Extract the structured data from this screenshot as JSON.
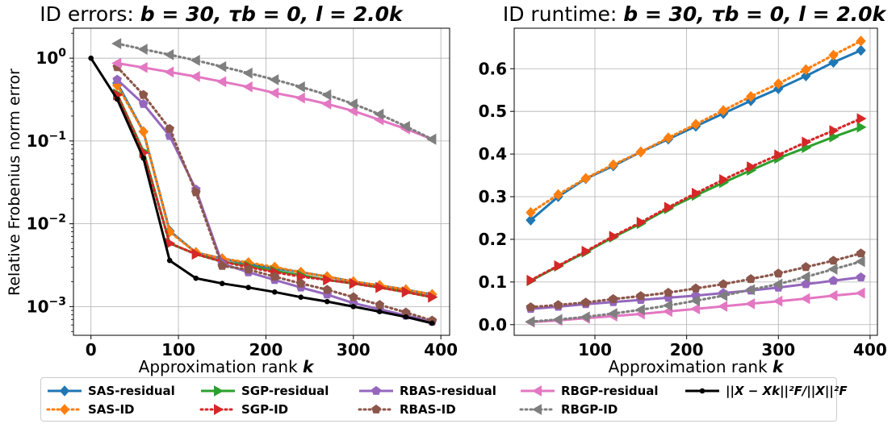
{
  "colors": {
    "blue": "#1f77b4",
    "orange": "#ff7f0e",
    "green": "#2ca02c",
    "red": "#d62728",
    "purple": "#9467bd",
    "brown": "#8c564b",
    "pink": "#e377c2",
    "gray": "#7f7f7f",
    "black": "#000000"
  },
  "chart_data": [
    {
      "type": "line",
      "title": {
        "prefix": "ID errors: ",
        "math": "b = 30, τb = 0, l = 2.0k"
      },
      "xlabel": {
        "text": "Approximation rank ",
        "math": "k"
      },
      "ylabel": "Relative Frobenius norm error",
      "yscale": "log",
      "xlim": [
        -20,
        410
      ],
      "ylim": [
        0.00045,
        2.3
      ],
      "xticks": [
        "0",
        "100",
        "200",
        "300",
        "400"
      ],
      "yticks": [
        {
          "base": "10",
          "exp": "0"
        },
        {
          "base": "10",
          "exp": "−1"
        },
        {
          "base": "10",
          "exp": "−2"
        },
        {
          "base": "10",
          "exp": "−3"
        }
      ],
      "grid": true,
      "series": [
        {
          "name": "SAS-residual",
          "color": "blue",
          "dash": "solid",
          "marker": "diamond",
          "x": [
            30,
            60,
            90,
            120,
            150,
            180,
            210,
            240,
            270,
            300,
            330,
            360,
            390
          ],
          "y": [
            0.5,
            0.13,
            0.0082,
            0.0045,
            0.0038,
            0.0033,
            0.0029,
            0.0026,
            0.0023,
            0.002,
            0.0018,
            0.0016,
            0.0014
          ]
        },
        {
          "name": "SAS-ID",
          "color": "orange",
          "dash": "dotted",
          "marker": "diamond",
          "x": [
            30,
            60,
            90,
            120,
            150,
            180,
            210,
            240,
            270,
            300,
            330,
            360,
            390
          ],
          "y": [
            0.47,
            0.13,
            0.008,
            0.0045,
            0.0038,
            0.0034,
            0.003,
            0.0026,
            0.0023,
            0.002,
            0.0018,
            0.0016,
            0.0014
          ]
        },
        {
          "name": "SGP-residual",
          "color": "green",
          "dash": "solid",
          "marker": "tri-right",
          "x": [
            30,
            60,
            90,
            120,
            150,
            180,
            210,
            240,
            270,
            300,
            330,
            360,
            390
          ],
          "y": [
            0.37,
            0.075,
            0.0058,
            0.0043,
            0.0035,
            0.0031,
            0.0027,
            0.0024,
            0.0021,
            0.0019,
            0.0017,
            0.0015,
            0.0013
          ]
        },
        {
          "name": "SGP-ID",
          "color": "red",
          "dash": "dotted",
          "marker": "tri-right",
          "x": [
            30,
            60,
            90,
            120,
            150,
            180,
            210,
            240,
            270,
            300,
            330,
            360,
            390
          ],
          "y": [
            0.36,
            0.072,
            0.0058,
            0.0043,
            0.0035,
            0.003,
            0.0026,
            0.0023,
            0.0021,
            0.0019,
            0.0017,
            0.0015,
            0.0013
          ]
        },
        {
          "name": "RBAS-residual",
          "color": "purple",
          "dash": "solid",
          "marker": "pentagon",
          "x": [
            30,
            60,
            90,
            120,
            150,
            180,
            210,
            240,
            270,
            300,
            330,
            360,
            390
          ],
          "y": [
            0.55,
            0.28,
            0.115,
            0.026,
            0.0033,
            0.0026,
            0.0021,
            0.0017,
            0.0014,
            0.0011,
            0.00093,
            0.00078,
            0.00066
          ]
        },
        {
          "name": "RBAS-ID",
          "color": "brown",
          "dash": "dotted",
          "marker": "pentagon",
          "x": [
            30,
            60,
            90,
            120,
            150,
            180,
            210,
            240,
            270,
            300,
            330,
            360,
            390
          ],
          "y": [
            0.78,
            0.36,
            0.14,
            0.024,
            0.0031,
            0.0028,
            0.0023,
            0.0019,
            0.0016,
            0.0013,
            0.00105,
            0.00085,
            0.00068
          ]
        },
        {
          "name": "RBGP-residual",
          "color": "pink",
          "dash": "solid",
          "marker": "tri-left",
          "x": [
            30,
            60,
            90,
            120,
            150,
            180,
            210,
            240,
            270,
            300,
            330,
            360,
            390
          ],
          "y": [
            0.87,
            0.77,
            0.68,
            0.6,
            0.52,
            0.45,
            0.38,
            0.33,
            0.28,
            0.23,
            0.18,
            0.14,
            0.105
          ]
        },
        {
          "name": "RBGP-ID",
          "color": "gray",
          "dash": "dotted",
          "marker": "tri-left",
          "x": [
            30,
            60,
            90,
            120,
            150,
            180,
            210,
            240,
            270,
            300,
            330,
            360,
            390
          ],
          "y": [
            1.5,
            1.28,
            1.1,
            0.94,
            0.79,
            0.66,
            0.55,
            0.45,
            0.36,
            0.28,
            0.21,
            0.15,
            0.105
          ]
        },
        {
          "name": "||X − Xk||²F/||X||²F",
          "color": "black",
          "dash": "solid",
          "marker": "dot",
          "x": [
            0,
            30,
            60,
            90,
            120,
            150,
            180,
            210,
            240,
            270,
            300,
            330,
            360,
            390
          ],
          "y": [
            1.0,
            0.32,
            0.062,
            0.0036,
            0.0022,
            0.0019,
            0.0017,
            0.0015,
            0.0013,
            0.00115,
            0.001,
            0.00087,
            0.00075,
            0.00063
          ]
        }
      ]
    },
    {
      "type": "line",
      "title": {
        "prefix": "ID runtime: ",
        "math": "b = 30, τb = 0, l = 2.0k"
      },
      "xlabel": {
        "text": "Approximation rank ",
        "math": "k"
      },
      "ylabel": "",
      "yscale": "linear",
      "xlim": [
        12,
        408
      ],
      "ylim": [
        -0.025,
        0.695
      ],
      "xticks": [
        "100",
        "200",
        "300",
        "400"
      ],
      "yticks": [
        "0.0",
        "0.1",
        "0.2",
        "0.3",
        "0.4",
        "0.5",
        "0.6"
      ],
      "grid": true,
      "series": [
        {
          "name": "SAS-residual",
          "color": "blue",
          "dash": "solid",
          "marker": "diamond",
          "x": [
            30,
            60,
            90,
            120,
            150,
            180,
            210,
            240,
            270,
            300,
            330,
            360,
            390
          ],
          "y": [
            0.245,
            0.3,
            0.342,
            0.372,
            0.405,
            0.435,
            0.465,
            0.495,
            0.525,
            0.553,
            0.583,
            0.615,
            0.643
          ]
        },
        {
          "name": "SAS-ID",
          "color": "orange",
          "dash": "dotted",
          "marker": "diamond",
          "x": [
            30,
            60,
            90,
            120,
            150,
            180,
            210,
            240,
            270,
            300,
            330,
            360,
            390
          ],
          "y": [
            0.263,
            0.305,
            0.343,
            0.375,
            0.405,
            0.438,
            0.47,
            0.502,
            0.535,
            0.565,
            0.598,
            0.632,
            0.665
          ]
        },
        {
          "name": "SGP-residual",
          "color": "green",
          "dash": "solid",
          "marker": "tri-right",
          "x": [
            30,
            60,
            90,
            120,
            150,
            180,
            210,
            240,
            270,
            300,
            330,
            360,
            390
          ],
          "y": [
            0.103,
            0.137,
            0.17,
            0.205,
            0.237,
            0.272,
            0.303,
            0.333,
            0.362,
            0.39,
            0.415,
            0.44,
            0.463
          ]
        },
        {
          "name": "SGP-ID",
          "color": "red",
          "dash": "dotted",
          "marker": "tri-right",
          "x": [
            30,
            60,
            90,
            120,
            150,
            180,
            210,
            240,
            270,
            300,
            330,
            360,
            390
          ],
          "y": [
            0.104,
            0.138,
            0.172,
            0.207,
            0.24,
            0.275,
            0.308,
            0.34,
            0.37,
            0.398,
            0.428,
            0.455,
            0.483
          ]
        },
        {
          "name": "RBAS-residual",
          "color": "purple",
          "dash": "solid",
          "marker": "pentagon",
          "x": [
            30,
            60,
            90,
            120,
            150,
            180,
            210,
            240,
            270,
            300,
            330,
            360,
            390
          ],
          "y": [
            0.037,
            0.042,
            0.048,
            0.053,
            0.058,
            0.063,
            0.068,
            0.074,
            0.08,
            0.087,
            0.095,
            0.103,
            0.111
          ]
        },
        {
          "name": "RBAS-ID",
          "color": "brown",
          "dash": "dotted",
          "marker": "pentagon",
          "x": [
            30,
            60,
            90,
            120,
            150,
            180,
            210,
            240,
            270,
            300,
            330,
            360,
            390
          ],
          "y": [
            0.041,
            0.046,
            0.052,
            0.06,
            0.067,
            0.075,
            0.085,
            0.095,
            0.107,
            0.12,
            0.135,
            0.15,
            0.167
          ]
        },
        {
          "name": "RBGP-residual",
          "color": "pink",
          "dash": "solid",
          "marker": "tri-left",
          "x": [
            30,
            60,
            90,
            120,
            150,
            180,
            210,
            240,
            270,
            300,
            330,
            360,
            390
          ],
          "y": [
            0.006,
            0.01,
            0.015,
            0.02,
            0.025,
            0.031,
            0.037,
            0.043,
            0.049,
            0.055,
            0.061,
            0.068,
            0.074
          ]
        },
        {
          "name": "RBGP-ID",
          "color": "gray",
          "dash": "dotted",
          "marker": "tri-left",
          "x": [
            30,
            60,
            90,
            120,
            150,
            180,
            210,
            240,
            270,
            300,
            330,
            360,
            390
          ],
          "y": [
            0.007,
            0.012,
            0.018,
            0.026,
            0.035,
            0.045,
            0.056,
            0.068,
            0.082,
            0.095,
            0.112,
            0.13,
            0.148
          ]
        }
      ]
    }
  ]
}
